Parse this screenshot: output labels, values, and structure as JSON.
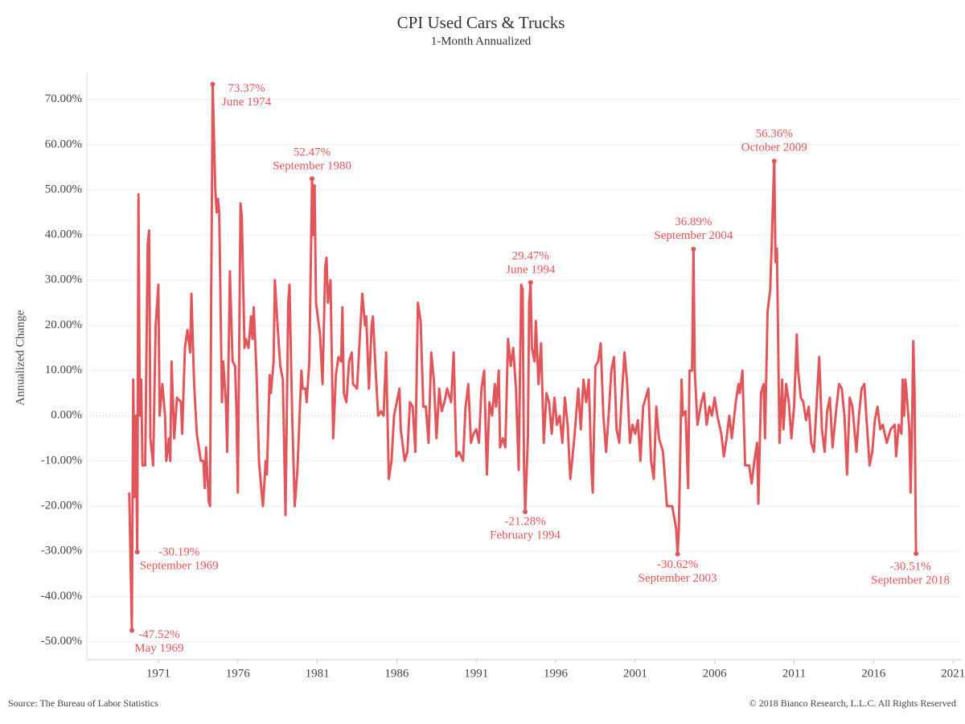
{
  "chart_data": {
    "type": "line",
    "title": "CPI Used Cars & Trucks",
    "subtitle": "1-Month Annualized",
    "y_label": "Annualized Change",
    "color": "#e0575b",
    "grid": true,
    "xlim": [
      1966.5,
      2021.5
    ],
    "xticks": [
      1971,
      1976,
      1981,
      1986,
      1991,
      1996,
      2001,
      2006,
      2011,
      2016,
      2021
    ],
    "ylim": [
      -54,
      76
    ],
    "yticks": [
      {
        "value": -50,
        "label": "-50.00%"
      },
      {
        "value": -40,
        "label": "-40.00%"
      },
      {
        "value": -30,
        "label": "-30.00%"
      },
      {
        "value": -20,
        "label": "-20.00%"
      },
      {
        "value": -10,
        "label": "-10.00%"
      },
      {
        "value": 0,
        "label": "0.00%"
      },
      {
        "value": 10,
        "label": "10.00%"
      },
      {
        "value": 20,
        "label": "20.00%"
      },
      {
        "value": 30,
        "label": "30.00%"
      },
      {
        "value": 40,
        "label": "40.00%"
      },
      {
        "value": 50,
        "label": "50.00%"
      },
      {
        "value": 60,
        "label": "60.00%"
      },
      {
        "value": 70,
        "label": "70.00%"
      }
    ],
    "x": [
      1969.17,
      1969.33,
      1969.42,
      1969.5,
      1969.58,
      1969.67,
      1969.75,
      1969.83,
      1969.92,
      1970.0,
      1970.17,
      1970.33,
      1970.42,
      1970.5,
      1970.67,
      1970.83,
      1971.0,
      1971.08,
      1971.25,
      1971.42,
      1971.5,
      1971.67,
      1971.75,
      1971.83,
      1972.0,
      1972.17,
      1972.42,
      1972.5,
      1972.67,
      1972.83,
      1973.0,
      1973.08,
      1973.25,
      1973.42,
      1973.67,
      1973.83,
      1973.92,
      1974.0,
      1974.17,
      1974.25,
      1974.33,
      1974.42,
      1974.58,
      1974.67,
      1974.75,
      1974.83,
      1975.0,
      1975.08,
      1975.25,
      1975.33,
      1975.5,
      1975.67,
      1975.83,
      1975.92,
      1976.0,
      1976.17,
      1976.25,
      1976.42,
      1976.5,
      1976.67,
      1976.83,
      1976.92,
      1977.0,
      1977.17,
      1977.33,
      1977.5,
      1977.58,
      1977.67,
      1977.75,
      1977.83,
      1978.0,
      1978.08,
      1978.25,
      1978.33,
      1978.5,
      1978.67,
      1978.83,
      1979.0,
      1979.17,
      1979.25,
      1979.42,
      1979.58,
      1979.75,
      1980.0,
      1980.08,
      1980.25,
      1980.33,
      1980.5,
      1980.67,
      1980.75,
      1980.83,
      1980.92,
      1981.17,
      1981.33,
      1981.5,
      1981.58,
      1981.67,
      1981.83,
      1982.0,
      1982.17,
      1982.33,
      1982.5,
      1982.58,
      1982.67,
      1982.83,
      1983.0,
      1983.17,
      1983.25,
      1983.5,
      1983.67,
      1983.83,
      1984.0,
      1984.08,
      1984.25,
      1984.42,
      1984.5,
      1984.67,
      1984.83,
      1985.0,
      1985.17,
      1985.33,
      1985.5,
      1985.67,
      1985.83,
      1986.0,
      1986.17,
      1986.25,
      1986.5,
      1986.67,
      1986.83,
      1987.0,
      1987.17,
      1987.33,
      1987.5,
      1987.67,
      1987.83,
      1988.0,
      1988.17,
      1988.33,
      1988.5,
      1988.67,
      1988.83,
      1989.0,
      1989.17,
      1989.42,
      1989.58,
      1989.75,
      1989.92,
      1990.17,
      1990.33,
      1990.5,
      1990.67,
      1990.83,
      1991.0,
      1991.17,
      1991.33,
      1991.5,
      1991.67,
      1991.83,
      1992.0,
      1992.17,
      1992.25,
      1992.42,
      1992.5,
      1992.67,
      1992.83,
      1993.0,
      1993.17,
      1993.33,
      1993.5,
      1993.67,
      1993.83,
      1993.92,
      1994.0,
      1994.08,
      1994.25,
      1994.33,
      1994.42,
      1994.5,
      1994.67,
      1994.75,
      1994.92,
      1995.08,
      1995.25,
      1995.42,
      1995.58,
      1995.75,
      1995.92,
      1996.08,
      1996.25,
      1996.42,
      1996.58,
      1996.75,
      1996.92,
      1997.17,
      1997.42,
      1997.58,
      1997.75,
      1997.92,
      1998.08,
      1998.25,
      1998.33,
      1998.5,
      1998.67,
      1998.83,
      1999.0,
      1999.17,
      1999.33,
      1999.5,
      1999.67,
      1999.83,
      2000.0,
      2000.17,
      2000.33,
      2000.5,
      2000.67,
      2000.83,
      2001.0,
      2001.17,
      2001.33,
      2001.5,
      2001.67,
      2001.83,
      2002.0,
      2002.17,
      2002.33,
      2002.5,
      2002.75,
      2003.0,
      2003.33,
      2003.58,
      2003.67,
      2003.75,
      2003.92,
      2004.0,
      2004.17,
      2004.33,
      2004.42,
      2004.58,
      2004.67,
      2004.75,
      2004.92,
      2005.17,
      2005.33,
      2005.5,
      2005.67,
      2005.83,
      2006.0,
      2006.17,
      2006.42,
      2006.58,
      2006.75,
      2006.92,
      2007.08,
      2007.33,
      2007.5,
      2007.58,
      2007.75,
      2007.92,
      2008.17,
      2008.33,
      2008.5,
      2008.67,
      2008.75,
      2008.92,
      2009.08,
      2009.17,
      2009.33,
      2009.5,
      2009.75,
      2009.83,
      2009.92,
      2010.08,
      2010.25,
      2010.33,
      2010.5,
      2010.67,
      2010.83,
      2011.0,
      2011.17,
      2011.25,
      2011.42,
      2011.58,
      2011.75,
      2011.92,
      2012.08,
      2012.25,
      2012.42,
      2012.58,
      2012.75,
      2012.92,
      2013.08,
      2013.25,
      2013.42,
      2013.67,
      2013.83,
      2014.0,
      2014.17,
      2014.33,
      2014.5,
      2014.67,
      2014.92,
      2015.08,
      2015.25,
      2015.42,
      2015.58,
      2015.75,
      2015.92,
      2016.08,
      2016.25,
      2016.42,
      2016.58,
      2016.83,
      2017.08,
      2017.33,
      2017.42,
      2017.58,
      2017.75,
      2017.83,
      2017.92,
      2018.0,
      2018.08,
      2018.25,
      2018.33,
      2018.42,
      2018.5,
      2018.58,
      2018.67
    ],
    "values": [
      -17,
      -47.52,
      8,
      -18,
      0,
      -30.19,
      49,
      0,
      8,
      -11,
      -11,
      38,
      41,
      -5,
      -11,
      20,
      29,
      0,
      7,
      0,
      -10,
      -5,
      -10,
      12,
      -5,
      4,
      3,
      -4,
      15,
      19,
      14,
      27,
      7,
      -4,
      -10,
      -10,
      -16,
      -7,
      -19,
      -20,
      30,
      73.37,
      50,
      45,
      48,
      45,
      3,
      12,
      3,
      -8,
      32,
      12,
      11,
      0,
      -17,
      47,
      44,
      15,
      17,
      15,
      22,
      17,
      24,
      10,
      -10,
      -17,
      -20,
      -15,
      -10,
      -13,
      9,
      5,
      12,
      30,
      20,
      11,
      8,
      -22,
      25,
      29,
      0,
      -20,
      -12,
      10,
      6,
      6,
      3,
      12,
      52.47,
      40,
      51,
      25,
      18,
      7,
      33,
      35,
      25,
      30,
      -5,
      9,
      13,
      12,
      24,
      5,
      3,
      12,
      14,
      7,
      6,
      17,
      27,
      20,
      22,
      6,
      20,
      22,
      10,
      0,
      1,
      0,
      14,
      -14,
      -10,
      0,
      3,
      6,
      -3,
      -10,
      -8,
      3,
      2,
      -8,
      25,
      21,
      2,
      2,
      -6,
      14,
      8,
      -5,
      6,
      1,
      3,
      6,
      3,
      14,
      -9,
      -8,
      -10,
      2,
      7,
      -6,
      -4,
      -3,
      -6,
      6,
      10,
      -13,
      3,
      0,
      7,
      2,
      10,
      -7,
      -5,
      -7,
      17,
      11,
      15,
      6,
      -12,
      29,
      28,
      -10,
      -21.28,
      -5,
      25,
      29.47,
      15,
      12,
      21,
      7,
      16,
      -6,
      5,
      3,
      -4,
      4,
      -2,
      0,
      -6,
      4,
      -2,
      -14,
      -5,
      6,
      -3,
      8,
      3,
      8,
      -12,
      -17,
      11,
      12,
      16,
      0,
      -8,
      0,
      10,
      13,
      -3,
      -6,
      5,
      14,
      7,
      -6,
      -2,
      -4,
      -1,
      -10,
      2,
      4,
      6,
      -10,
      -14,
      2,
      -5,
      -8,
      -20,
      -20,
      -25,
      -30.62,
      -25,
      8,
      0,
      1,
      -16,
      10,
      10,
      36.89,
      10,
      -2,
      3,
      5,
      -2,
      2,
      0,
      4,
      0,
      -4,
      -9,
      -5,
      0,
      -5,
      3,
      7,
      5,
      10,
      -11,
      -11,
      -15,
      -10,
      -6,
      -19.5,
      5,
      7,
      -5,
      23,
      28,
      56.36,
      34,
      37,
      -6,
      8,
      -3,
      7,
      3,
      -5,
      2,
      18,
      10,
      4,
      3,
      -1,
      2,
      -6,
      -8,
      3,
      13,
      -3,
      -8,
      1,
      4,
      -7,
      2,
      7,
      6,
      0,
      -13,
      4,
      2,
      -8,
      0,
      6,
      7,
      -2,
      -11,
      -8,
      -1,
      2,
      -3,
      -2,
      -6,
      -3,
      -2,
      -9,
      -2,
      -4,
      8,
      0,
      8,
      5,
      -3,
      -17,
      -2,
      16.5,
      5,
      -30.51
    ],
    "annotations": [
      {
        "x": 1969.33,
        "value": -47.52,
        "label": "-47.52%",
        "date": "May 1969"
      },
      {
        "x": 1969.67,
        "value": -30.19,
        "label": "-30.19%",
        "date": "September 1969"
      },
      {
        "x": 1974.42,
        "value": 73.37,
        "label": "73.37%",
        "date": "June 1974"
      },
      {
        "x": 1980.67,
        "value": 52.47,
        "label": "52.47%",
        "date": "September 1980"
      },
      {
        "x": 1994.08,
        "value": -21.28,
        "label": "-21.28%",
        "date": "February 1994"
      },
      {
        "x": 1994.42,
        "value": 29.47,
        "label": "29.47%",
        "date": "June 1994"
      },
      {
        "x": 2003.67,
        "value": -30.62,
        "label": "-30.62%",
        "date": "September 2003"
      },
      {
        "x": 2004.67,
        "value": 36.89,
        "label": "36.89%",
        "date": "September 2004"
      },
      {
        "x": 2009.75,
        "value": 56.36,
        "label": "56.36%",
        "date": "October 2009"
      },
      {
        "x": 2018.67,
        "value": -30.51,
        "label": "-30.51%",
        "date": "September 2018"
      }
    ]
  },
  "footer": {
    "source": "Source: The Bureau of Labor Statistics",
    "copyright": "© 2018 Bianco Research, L.L.C. All Rights Reserved"
  }
}
